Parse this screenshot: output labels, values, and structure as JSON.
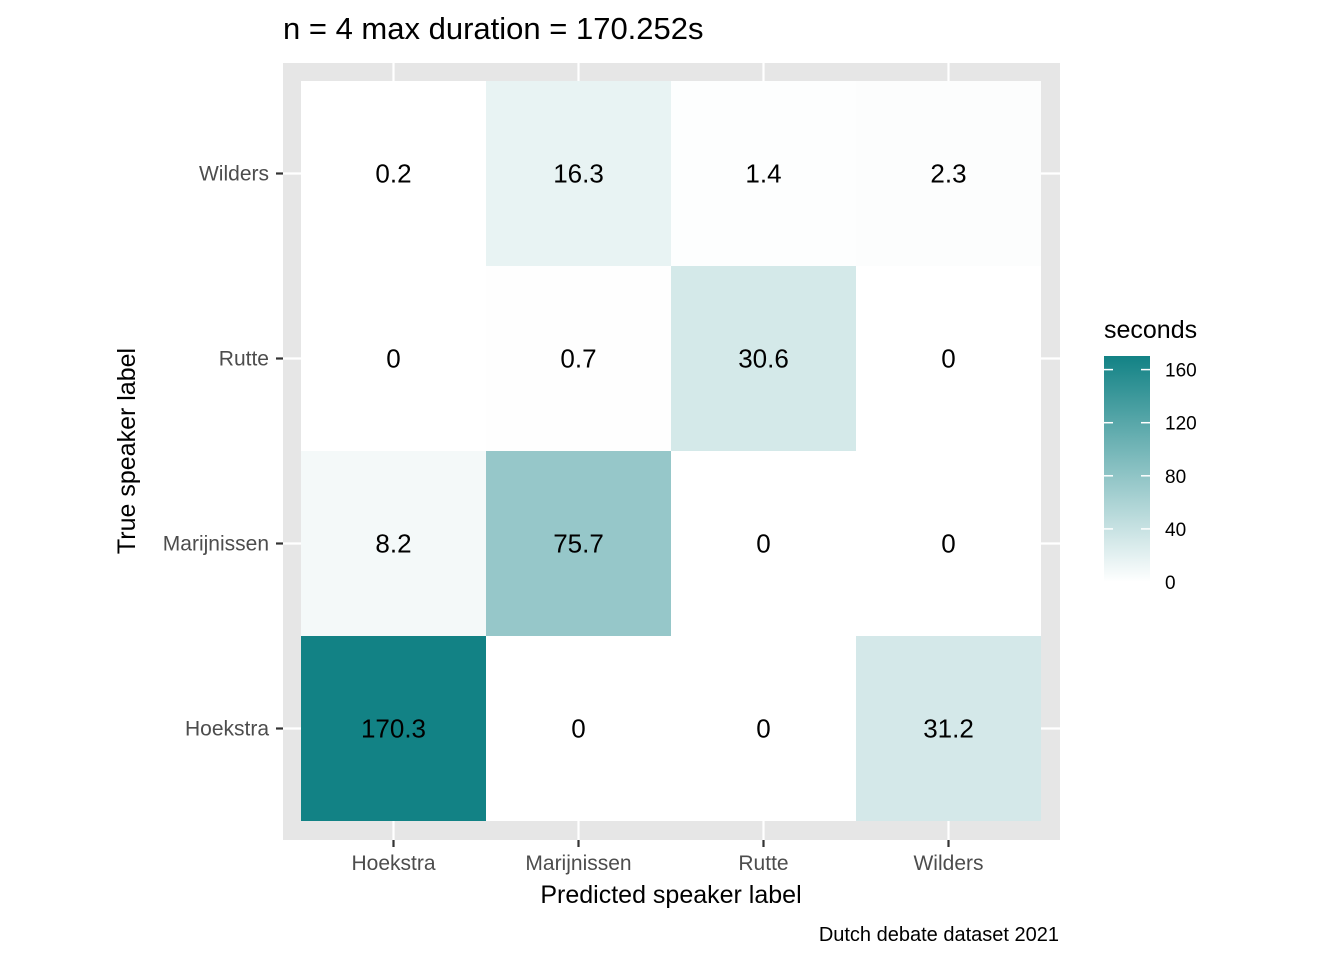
{
  "chart_data": {
    "type": "heatmap",
    "title": "n = 4 max duration = 170.252s",
    "xlabel": "Predicted speaker label",
    "ylabel": "True speaker label",
    "caption": "Dutch debate dataset 2021",
    "x_categories": [
      "Hoekstra",
      "Marijnissen",
      "Rutte",
      "Wilders"
    ],
    "y_categories": [
      "Hoekstra",
      "Marijnissen",
      "Rutte",
      "Wilders"
    ],
    "cells": [
      {
        "x": "Hoekstra",
        "y": "Wilders",
        "value": 0.2,
        "label": "0.2"
      },
      {
        "x": "Marijnissen",
        "y": "Wilders",
        "value": 16.3,
        "label": "16.3"
      },
      {
        "x": "Rutte",
        "y": "Wilders",
        "value": 1.4,
        "label": "1.4"
      },
      {
        "x": "Wilders",
        "y": "Wilders",
        "value": 2.3,
        "label": "2.3"
      },
      {
        "x": "Hoekstra",
        "y": "Rutte",
        "value": 0,
        "label": "0"
      },
      {
        "x": "Marijnissen",
        "y": "Rutte",
        "value": 0.7,
        "label": "0.7"
      },
      {
        "x": "Rutte",
        "y": "Rutte",
        "value": 30.6,
        "label": "30.6"
      },
      {
        "x": "Wilders",
        "y": "Rutte",
        "value": 0,
        "label": "0"
      },
      {
        "x": "Hoekstra",
        "y": "Marijnissen",
        "value": 8.2,
        "label": "8.2"
      },
      {
        "x": "Marijnissen",
        "y": "Marijnissen",
        "value": 75.7,
        "label": "75.7"
      },
      {
        "x": "Rutte",
        "y": "Marijnissen",
        "value": 0,
        "label": "0"
      },
      {
        "x": "Wilders",
        "y": "Marijnissen",
        "value": 0,
        "label": "0"
      },
      {
        "x": "Hoekstra",
        "y": "Hoekstra",
        "value": 170.3,
        "label": "170.3"
      },
      {
        "x": "Marijnissen",
        "y": "Hoekstra",
        "value": 0,
        "label": "0"
      },
      {
        "x": "Rutte",
        "y": "Hoekstra",
        "value": 0,
        "label": "0"
      },
      {
        "x": "Wilders",
        "y": "Hoekstra",
        "value": 31.2,
        "label": "31.2"
      }
    ],
    "legend": {
      "title": "seconds",
      "placement": "right",
      "ticks": [
        0,
        40,
        80,
        120,
        160
      ],
      "tick_labels": [
        "0",
        "40",
        "80",
        "120",
        "160"
      ],
      "range": [
        0,
        170.252
      ],
      "low_color": "#ffffff",
      "high_color": "#128285"
    },
    "panel_background": "#e6e6e6",
    "grid": true
  }
}
